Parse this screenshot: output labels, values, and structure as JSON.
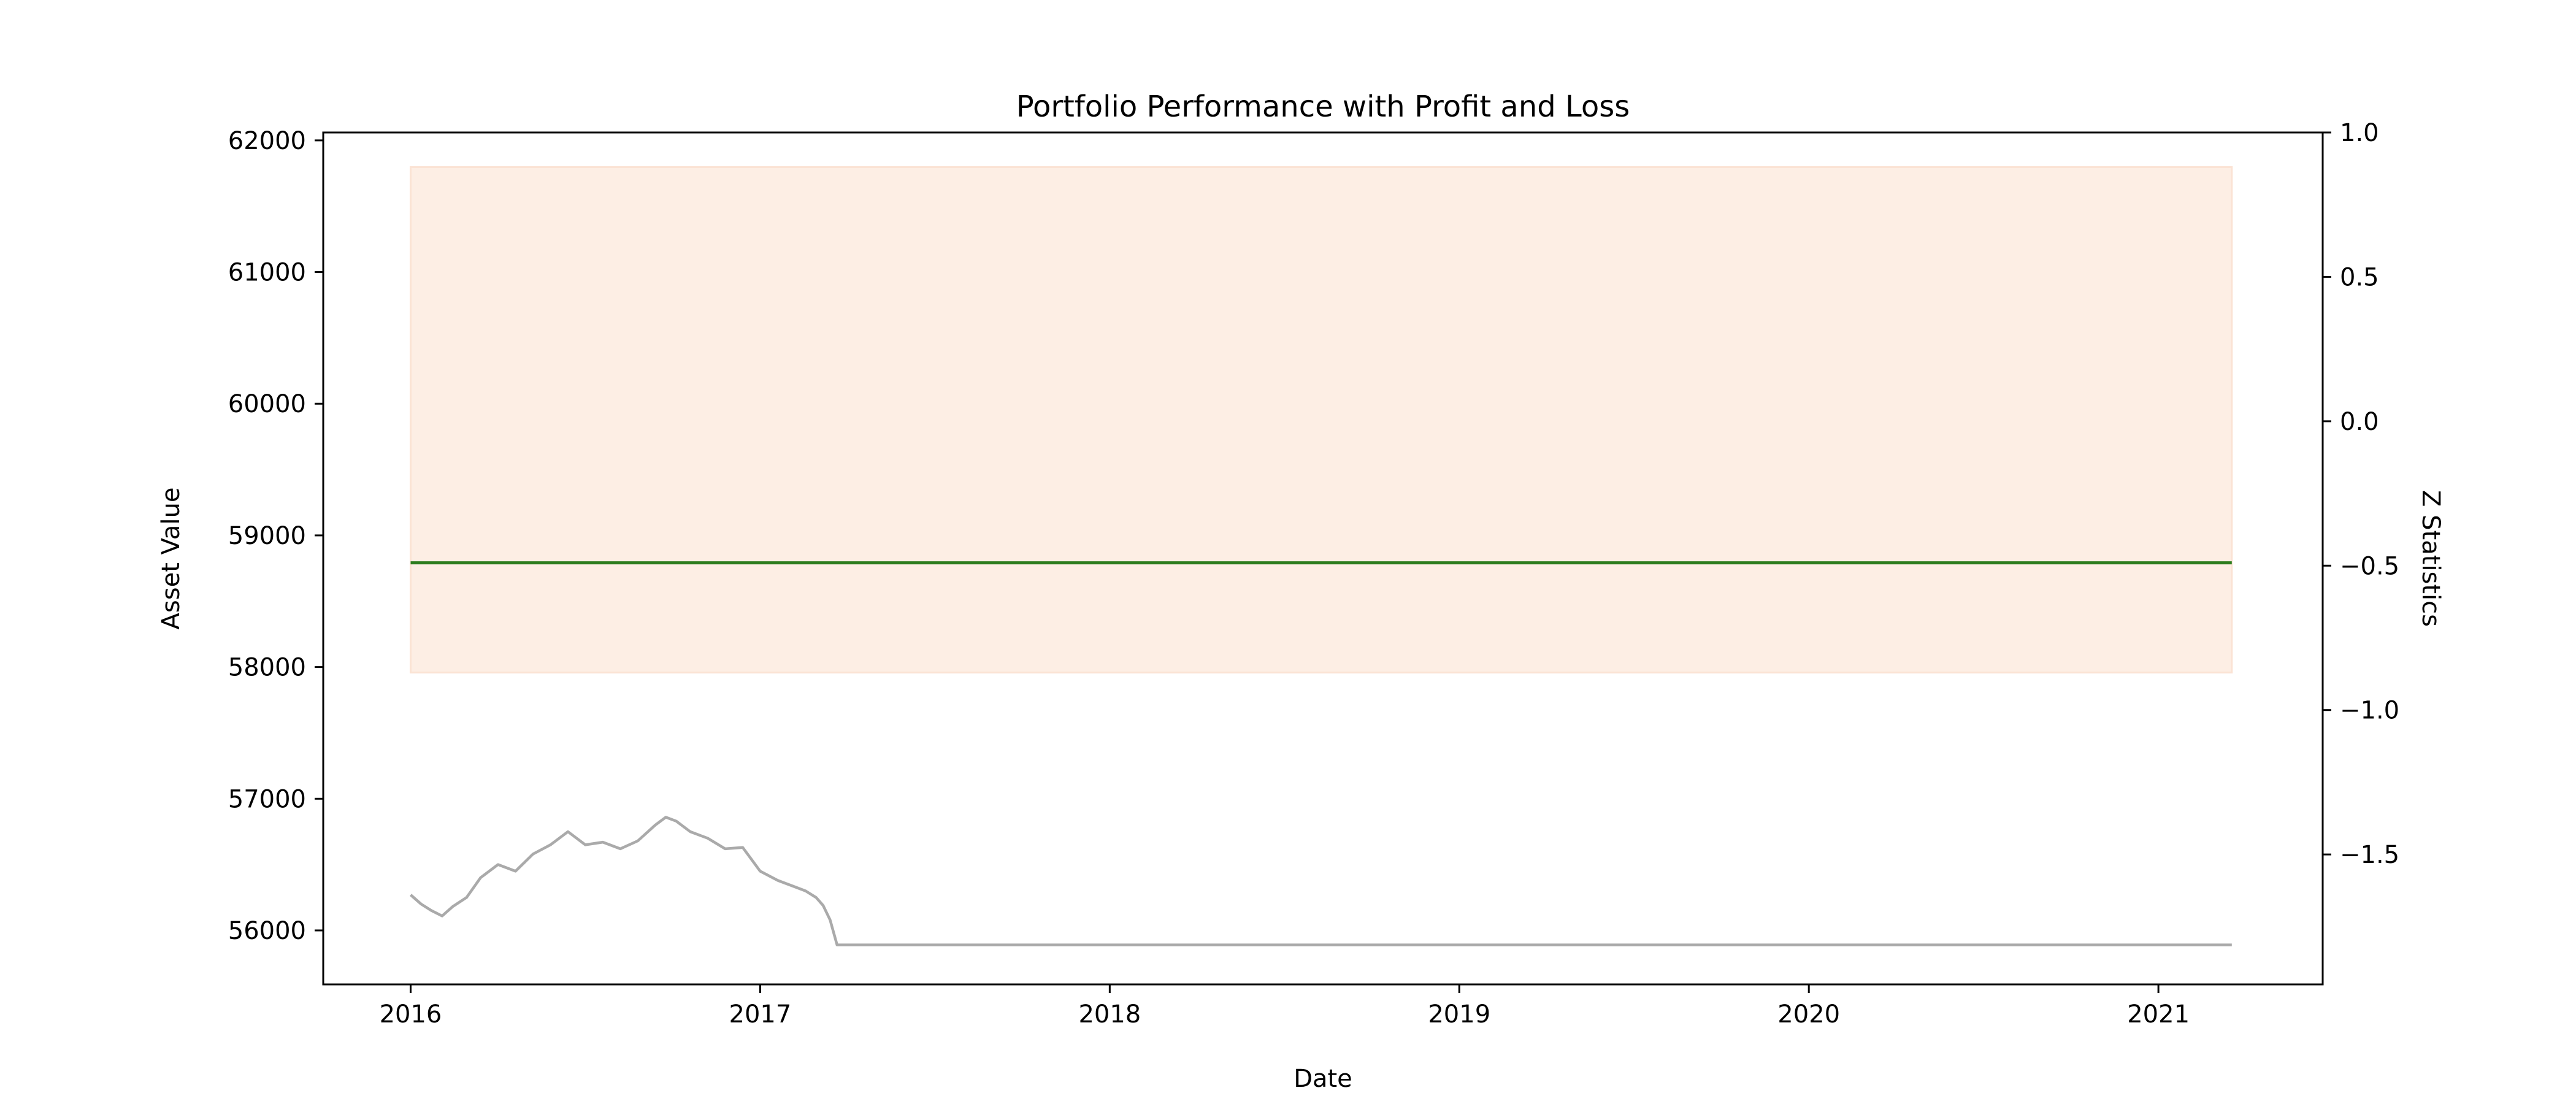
{
  "chart_data": {
    "type": "line",
    "title": "Portfolio Performance with Profit and Loss",
    "xlabel": "Date",
    "ylabel": "Asset Value",
    "y2label": "Z Statistics",
    "x_ticks": [
      "2016",
      "2017",
      "2018",
      "2019",
      "2020",
      "2021"
    ],
    "y_ticks": [
      56000,
      57000,
      58000,
      59000,
      60000,
      61000,
      62000
    ],
    "y2_ticks": [
      "1.0",
      "0.5",
      "0.0",
      "−0.5",
      "−1.0",
      "−1.5"
    ],
    "xlim": [
      2015.75,
      2021.47
    ],
    "ylim": [
      55590,
      62060
    ],
    "y2lim": [
      -1.95,
      1.0
    ],
    "grid": false,
    "series": [
      {
        "axis": "left",
        "color": "#aaaaaa",
        "x": [
          2016.0,
          2016.03,
          2016.06,
          2016.09,
          2016.12,
          2016.16,
          2016.2,
          2016.25,
          2016.3,
          2016.35,
          2016.4,
          2016.45,
          2016.5,
          2016.55,
          2016.6,
          2016.65,
          2016.7,
          2016.73,
          2016.76,
          2016.8,
          2016.85,
          2016.9,
          2016.95,
          2017.0,
          2017.05,
          2017.1,
          2017.13,
          2017.16,
          2017.18,
          2017.2,
          2017.22,
          2017.5,
          2018.0,
          2018.5,
          2019.0,
          2019.5,
          2020.0,
          2020.5,
          2021.0,
          2021.21
        ],
        "y": [
          56270,
          56200,
          56150,
          56110,
          56180,
          56250,
          56400,
          56500,
          56450,
          56580,
          56650,
          56750,
          56650,
          56670,
          56620,
          56680,
          56800,
          56860,
          56830,
          56750,
          56700,
          56620,
          56630,
          56450,
          56380,
          56330,
          56300,
          56250,
          56190,
          56080,
          55890,
          55890,
          55890,
          55890,
          55890,
          55890,
          55890,
          55890,
          55890,
          55890
        ]
      },
      {
        "axis": "right",
        "color": "#2e7d1e",
        "x": [
          2016.0,
          2021.21
        ],
        "y": [
          -0.49,
          -0.49
        ]
      }
    ],
    "bands": [
      {
        "axis": "right",
        "color": "#fdeee4",
        "x": [
          2016.0,
          2021.21
        ],
        "y_low": -0.87,
        "y_high": 0.88
      }
    ]
  }
}
